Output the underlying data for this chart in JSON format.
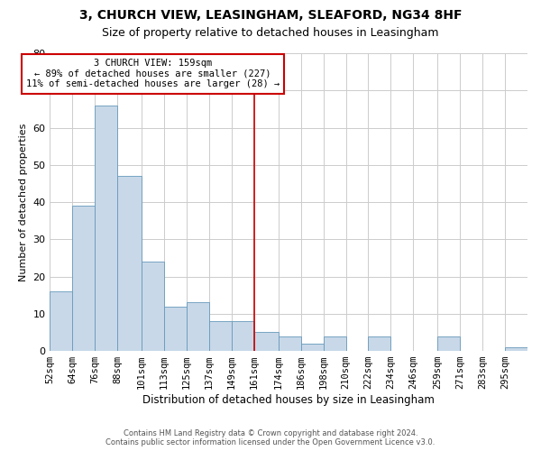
{
  "title1": "3, CHURCH VIEW, LEASINGHAM, SLEAFORD, NG34 8HF",
  "title2": "Size of property relative to detached houses in Leasingham",
  "xlabel": "Distribution of detached houses by size in Leasingham",
  "ylabel": "Number of detached properties",
  "footer1": "Contains HM Land Registry data © Crown copyright and database right 2024.",
  "footer2": "Contains public sector information licensed under the Open Government Licence v3.0.",
  "bar_color": "#c8d8e8",
  "bar_edge_color": "#6699bb",
  "annotation_text": "3 CHURCH VIEW: 159sqm\n← 89% of detached houses are smaller (227)\n11% of semi-detached houses are larger (28) →",
  "vline_x": 161,
  "vline_color": "#cc0000",
  "annotation_box_color": "#cc0000",
  "categories": [
    "52sqm",
    "64sqm",
    "76sqm",
    "88sqm",
    "101sqm",
    "113sqm",
    "125sqm",
    "137sqm",
    "149sqm",
    "161sqm",
    "174sqm",
    "186sqm",
    "198sqm",
    "210sqm",
    "222sqm",
    "234sqm",
    "246sqm",
    "259sqm",
    "271sqm",
    "283sqm",
    "295sqm"
  ],
  "bin_edges": [
    52,
    64,
    76,
    88,
    101,
    113,
    125,
    137,
    149,
    161,
    174,
    186,
    198,
    210,
    222,
    234,
    246,
    259,
    271,
    283,
    295,
    307
  ],
  "values": [
    16,
    39,
    66,
    47,
    24,
    12,
    13,
    8,
    8,
    5,
    4,
    2,
    4,
    0,
    4,
    0,
    0,
    4,
    0,
    0,
    1
  ],
  "ylim": [
    0,
    80
  ],
  "yticks": [
    0,
    10,
    20,
    30,
    40,
    50,
    60,
    70,
    80
  ],
  "grid_color": "#cccccc",
  "background_color": "#ffffff",
  "title1_fontsize": 10,
  "title2_fontsize": 9,
  "ylabel_fontsize": 8,
  "xlabel_fontsize": 8.5,
  "tick_fontsize": 7.5,
  "footer_fontsize": 6,
  "ann_fontsize": 7.5
}
